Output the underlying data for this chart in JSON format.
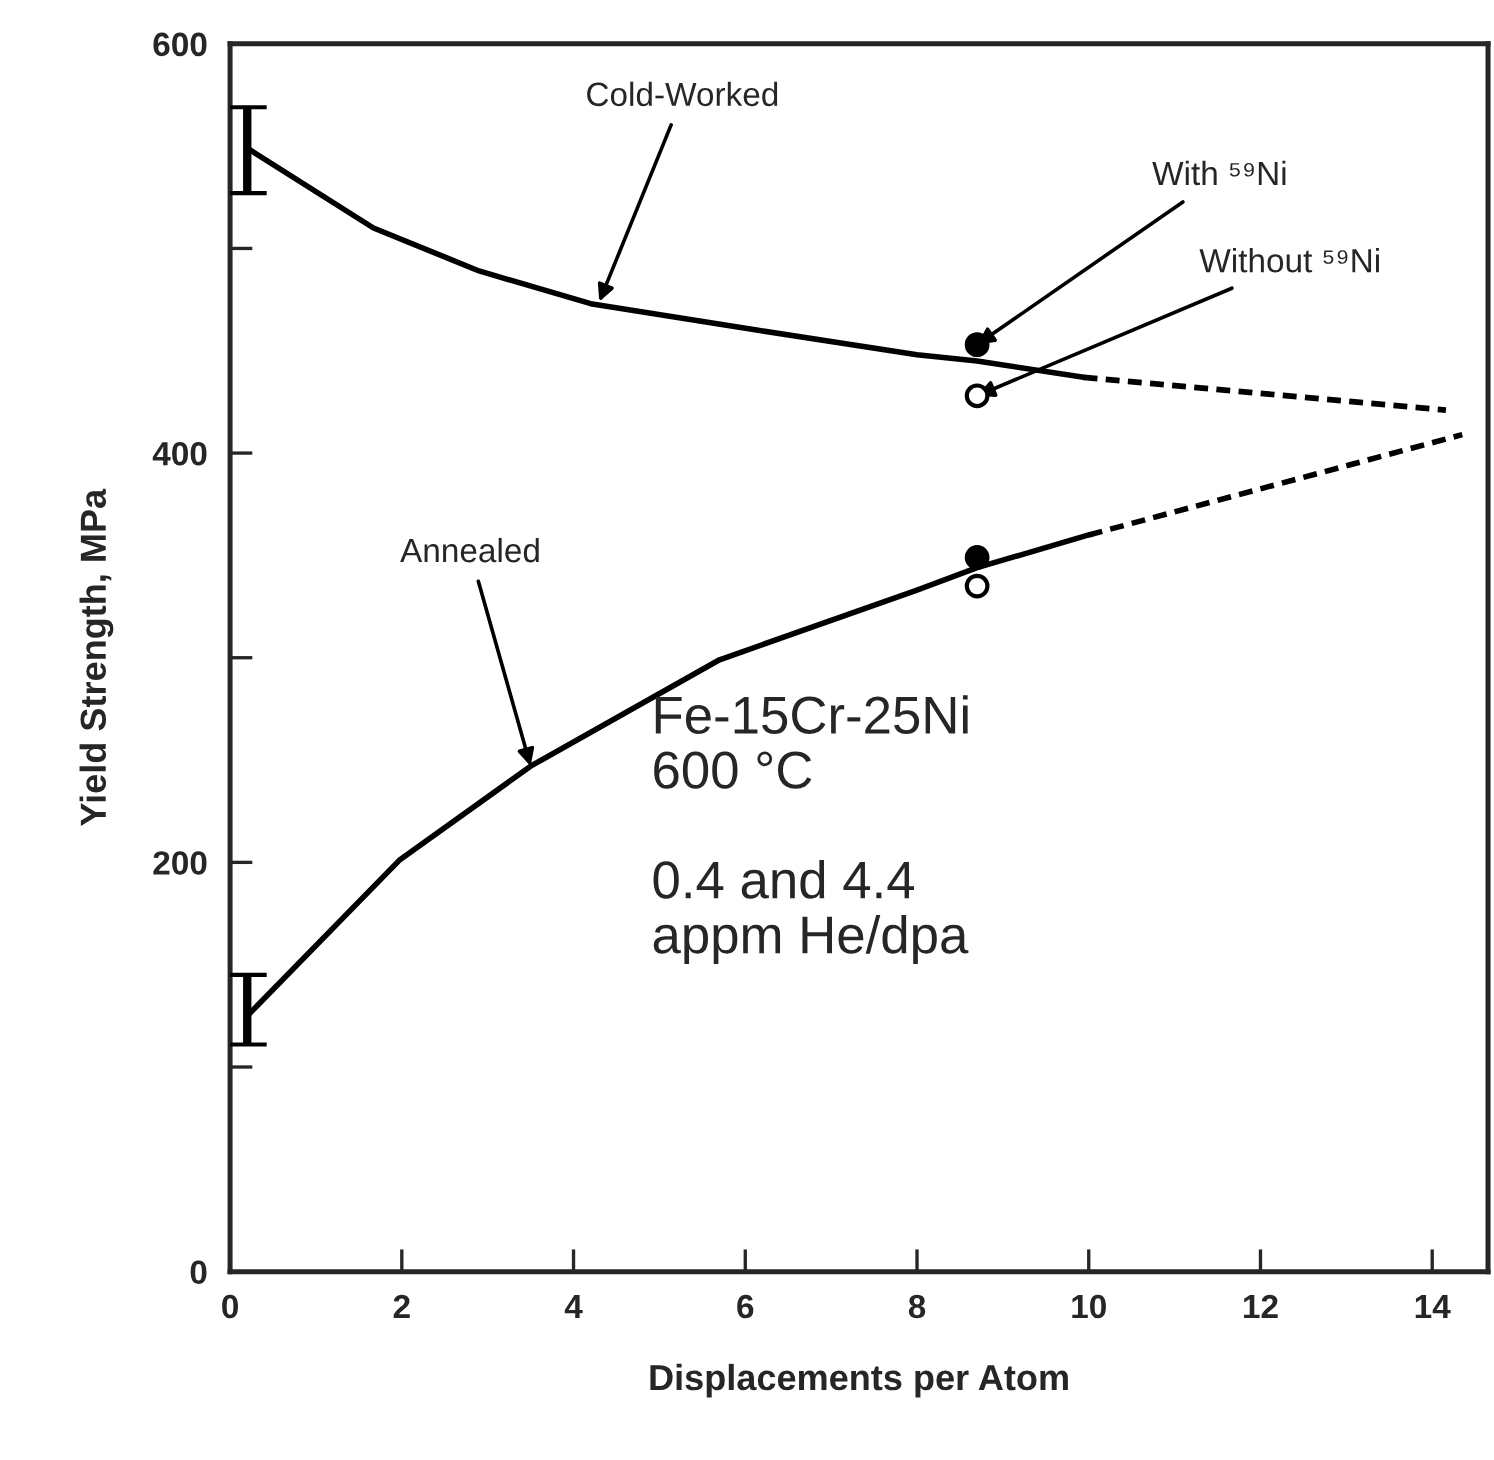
{
  "chart_data": {
    "type": "line",
    "xlabel": "Displacements per Atom",
    "ylabel": "Yield Strength, MPa",
    "xlim": [
      0,
      14.65
    ],
    "ylim": [
      0,
      600
    ],
    "xticks": [
      0,
      2,
      4,
      6,
      8,
      10,
      12,
      14
    ],
    "yticks": [
      0,
      {
        "value": 100,
        "label": null
      },
      200,
      {
        "value": 300,
        "label": null
      },
      400,
      {
        "value": 500,
        "label": null
      },
      600
    ],
    "grid": false,
    "legend": false,
    "series": [
      {
        "color": "#000000",
        "line_style": "solid",
        "marker": "none",
        "x": [
          0.2,
          1.67,
          2.9,
          4.2,
          6.15,
          8.0,
          8.7,
          9.94
        ],
        "values": [
          549,
          510,
          489,
          473,
          460,
          448,
          445,
          437
        ],
        "errors": [
          [
            527,
            569
          ],
          null,
          null,
          null,
          null,
          null,
          null,
          null
        ]
      },
      {
        "color": "#000000",
        "line_style": "dashed",
        "marker": "none",
        "x": [
          9.94,
          14.16
        ],
        "values": [
          437,
          421
        ]
      },
      {
        "color": "#000000",
        "line_style": "solid",
        "marker": "none",
        "x": [
          0.2,
          1.97,
          3.5,
          5.7,
          8.0,
          8.7,
          10.0
        ],
        "values": [
          125,
          201,
          247,
          299,
          333,
          344,
          360
        ],
        "errors": [
          [
            111,
            145
          ],
          null,
          null,
          null,
          null,
          null,
          null
        ]
      },
      {
        "color": "#000000",
        "line_style": "dashed",
        "marker": "none",
        "x": [
          10.0,
          14.35
        ],
        "values": [
          360,
          409
        ]
      },
      {
        "type": "scatter",
        "color": "#000000",
        "marker": "circle",
        "x": [
          8.7,
          8.7
        ],
        "values": [
          453,
          349
        ]
      },
      {
        "type": "scatter",
        "color": "#ffffff",
        "marker": "circle",
        "x": [
          8.7,
          8.7
        ],
        "values": [
          428,
          335
        ]
      }
    ],
    "annotations": [
      {
        "text": "Cold-Worked",
        "x": 4.3,
        "y": 474
      },
      {
        "text": "Annealed",
        "x": 3.5,
        "y": 247
      },
      {
        "text": "With ⁵⁹Ni",
        "x": 8.7,
        "y": 453
      },
      {
        "text": "Without ⁵⁹Ni",
        "x": 8.7,
        "y": 428
      },
      "Fe-15Cr-25Ni\n600 °C\n\n0.4 and 4.4\nappm He/dpa"
    ]
  }
}
